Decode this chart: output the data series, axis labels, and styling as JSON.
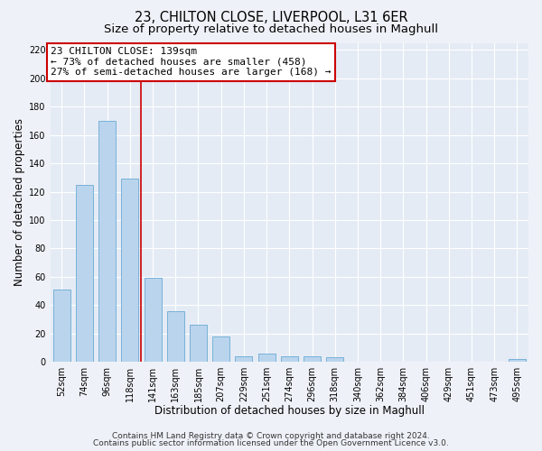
{
  "title": "23, CHILTON CLOSE, LIVERPOOL, L31 6ER",
  "subtitle": "Size of property relative to detached houses in Maghull",
  "bar_heights": [
    51,
    125,
    170,
    129,
    59,
    36,
    26,
    18,
    4,
    6,
    4,
    4,
    3,
    0,
    0,
    0,
    0,
    0,
    0,
    0,
    2
  ],
  "bin_labels": [
    "52sqm",
    "74sqm",
    "96sqm",
    "118sqm",
    "141sqm",
    "163sqm",
    "185sqm",
    "207sqm",
    "229sqm",
    "251sqm",
    "274sqm",
    "296sqm",
    "318sqm",
    "340sqm",
    "362sqm",
    "384sqm",
    "406sqm",
    "429sqm",
    "451sqm",
    "473sqm",
    "495sqm"
  ],
  "bar_color": "#bad4ed",
  "bar_edge_color": "#6aaad4",
  "bar_width": 0.75,
  "vline_x": 3.5,
  "vline_color": "#cc0000",
  "annotation_line1": "23 CHILTON CLOSE: 139sqm",
  "annotation_line2": "← 73% of detached houses are smaller (458)",
  "annotation_line3": "27% of semi-detached houses are larger (168) →",
  "annotation_box_edge_color": "#cc0000",
  "xlabel": "Distribution of detached houses by size in Maghull",
  "ylabel": "Number of detached properties",
  "ylim": [
    0,
    225
  ],
  "yticks": [
    0,
    20,
    40,
    60,
    80,
    100,
    120,
    140,
    160,
    180,
    200,
    220
  ],
  "footer_line1": "Contains HM Land Registry data © Crown copyright and database right 2024.",
  "footer_line2": "Contains public sector information licensed under the Open Government Licence v3.0.",
  "bg_color": "#eef2f8",
  "plot_bg_color": "#e4ebf5",
  "grid_color": "#ffffff",
  "title_fontsize": 10.5,
  "subtitle_fontsize": 9.5,
  "axis_label_fontsize": 8.5,
  "tick_fontsize": 7,
  "footer_fontsize": 6.5,
  "annotation_fontsize": 8
}
